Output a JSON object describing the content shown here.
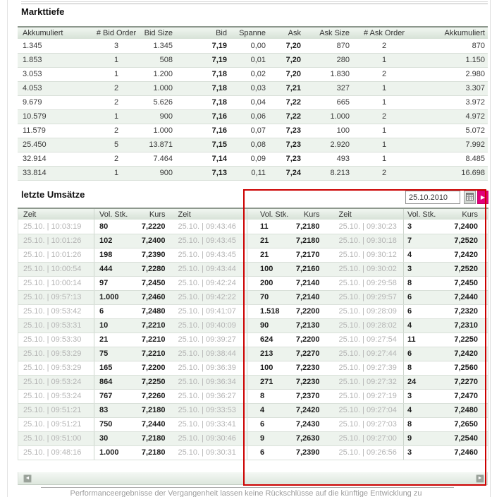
{
  "page": {
    "footer_disclaimer": "Performanceergebnisse der Vergangenheit lassen keine Rückschlüsse auf die künftige Entwicklung zu"
  },
  "colors": {
    "accent_magenta": "#e2007a",
    "annotation_red": "#cc0000",
    "table_header_bg_top": "#f1f6f1",
    "table_header_bg_bottom": "#d7e2d7",
    "row_alt_bg": "#edf3ed",
    "time_text_gray": "#b4b4b4",
    "value_text_dark": "#1c1c1c"
  },
  "icons": {
    "scroll_left": "◄",
    "scroll_right": "►",
    "submit_arrow": "▶"
  },
  "markttiefe": {
    "title": "Markttiefe",
    "columns": [
      "Akkumuliert",
      "# Bid Order",
      "Bid Size",
      "Bid",
      "Spanne",
      "Ask",
      "Ask Size",
      "# Ask Order",
      "Akkumuliert"
    ],
    "rows": [
      [
        "1.345",
        "3",
        "1.345",
        "7,19",
        "0,00",
        "7,20",
        "870",
        "2",
        "870"
      ],
      [
        "1.853",
        "1",
        "508",
        "7,19",
        "0,01",
        "7,20",
        "280",
        "1",
        "1.150"
      ],
      [
        "3.053",
        "1",
        "1.200",
        "7,18",
        "0,02",
        "7,20",
        "1.830",
        "2",
        "2.980"
      ],
      [
        "4.053",
        "2",
        "1.000",
        "7,18",
        "0,03",
        "7,21",
        "327",
        "1",
        "3.307"
      ],
      [
        "9.679",
        "2",
        "5.626",
        "7,18",
        "0,04",
        "7,22",
        "665",
        "1",
        "3.972"
      ],
      [
        "10.579",
        "1",
        "900",
        "7,16",
        "0,06",
        "7,22",
        "1.000",
        "2",
        "4.972"
      ],
      [
        "11.579",
        "2",
        "1.000",
        "7,16",
        "0,07",
        "7,23",
        "100",
        "1",
        "5.072"
      ],
      [
        "25.450",
        "5",
        "13.871",
        "7,15",
        "0,08",
        "7,23",
        "2.920",
        "1",
        "7.992"
      ],
      [
        "32.914",
        "2",
        "7.464",
        "7,14",
        "0,09",
        "7,23",
        "493",
        "1",
        "8.485"
      ],
      [
        "33.814",
        "1",
        "900",
        "7,13",
        "0,11",
        "7,24",
        "8.213",
        "2",
        "16.698"
      ]
    ]
  },
  "umsaetze": {
    "title": "letzte Umsätze",
    "date_value": "25.10.2010",
    "columns": [
      "Zeit",
      "Vol. Stk.",
      "Kurs",
      "Zeit",
      "Vol. Stk.",
      "Kurs",
      "Zeit",
      "Vol. Stk.",
      "Kurs"
    ],
    "rows": [
      [
        "25.10. | 10:03:19",
        "80",
        "7,2220",
        "25.10. | 09:43:46",
        "11",
        "7,2180",
        "25.10. | 09:30:23",
        "3",
        "7,2400"
      ],
      [
        "25.10. | 10:01:26",
        "102",
        "7,2400",
        "25.10. | 09:43:45",
        "21",
        "7,2180",
        "25.10. | 09:30:18",
        "7",
        "7,2520"
      ],
      [
        "25.10. | 10:01:26",
        "198",
        "7,2390",
        "25.10. | 09:43:45",
        "21",
        "7,2170",
        "25.10. | 09:30:12",
        "4",
        "7,2420"
      ],
      [
        "25.10. | 10:00:54",
        "444",
        "7,2280",
        "25.10. | 09:43:44",
        "100",
        "7,2160",
        "25.10. | 09:30:02",
        "3",
        "7,2520"
      ],
      [
        "25.10. | 10:00:14",
        "97",
        "7,2450",
        "25.10. | 09:42:24",
        "200",
        "7,2140",
        "25.10. | 09:29:58",
        "8",
        "7,2450"
      ],
      [
        "25.10. | 09:57:13",
        "1.000",
        "7,2460",
        "25.10. | 09:42:22",
        "70",
        "7,2140",
        "25.10. | 09:29:57",
        "6",
        "7,2440"
      ],
      [
        "25.10. | 09:53:42",
        "6",
        "7,2480",
        "25.10. | 09:41:07",
        "1.518",
        "7,2200",
        "25.10. | 09:28:09",
        "6",
        "7,2320"
      ],
      [
        "25.10. | 09:53:31",
        "10",
        "7,2210",
        "25.10. | 09:40:09",
        "90",
        "7,2130",
        "25.10. | 09:28:02",
        "4",
        "7,2310"
      ],
      [
        "25.10. | 09:53:30",
        "21",
        "7,2210",
        "25.10. | 09:39:27",
        "624",
        "7,2200",
        "25.10. | 09:27:54",
        "11",
        "7,2250"
      ],
      [
        "25.10. | 09:53:29",
        "75",
        "7,2210",
        "25.10. | 09:38:44",
        "213",
        "7,2270",
        "25.10. | 09:27:44",
        "6",
        "7,2420"
      ],
      [
        "25.10. | 09:53:29",
        "165",
        "7,2200",
        "25.10. | 09:36:39",
        "100",
        "7,2230",
        "25.10. | 09:27:39",
        "8",
        "7,2560"
      ],
      [
        "25.10. | 09:53:24",
        "864",
        "7,2250",
        "25.10. | 09:36:34",
        "271",
        "7,2230",
        "25.10. | 09:27:32",
        "24",
        "7,2270"
      ],
      [
        "25.10. | 09:53:24",
        "767",
        "7,2260",
        "25.10. | 09:36:27",
        "8",
        "7,2370",
        "25.10. | 09:27:19",
        "3",
        "7,2470"
      ],
      [
        "25.10. | 09:51:21",
        "83",
        "7,2180",
        "25.10. | 09:33:53",
        "4",
        "7,2420",
        "25.10. | 09:27:04",
        "4",
        "7,2480"
      ],
      [
        "25.10. | 09:51:21",
        "750",
        "7,2440",
        "25.10. | 09:33:41",
        "6",
        "7,2430",
        "25.10. | 09:27:03",
        "8",
        "7,2650"
      ],
      [
        "25.10. | 09:51:00",
        "30",
        "7,2180",
        "25.10. | 09:30:46",
        "9",
        "7,2630",
        "25.10. | 09:27:00",
        "9",
        "7,2540"
      ],
      [
        "25.10. | 09:48:16",
        "1.000",
        "7,2180",
        "25.10. | 09:30:31",
        "6",
        "7,2390",
        "25.10. | 09:26:56",
        "3",
        "7,2460"
      ]
    ]
  }
}
